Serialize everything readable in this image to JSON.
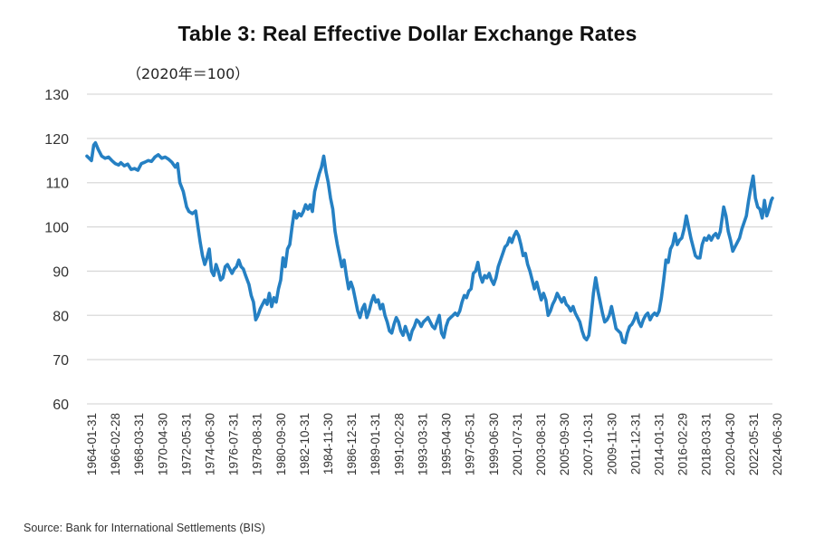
{
  "chart_data": {
    "type": "line",
    "title": "Table 3: Real Effective Dollar Exchange Rates",
    "unit_label": "（2020年＝100）",
    "xlabel": "",
    "ylabel": "",
    "ylim": [
      60,
      130
    ],
    "yticks": [
      60,
      70,
      80,
      90,
      100,
      110,
      120,
      130
    ],
    "grid": true,
    "legend": "none",
    "line_color": "#2580c3",
    "x_range": [
      1964.0,
      2024.5
    ],
    "xtick_labels": [
      "1964-01-31",
      "1966-02-28",
      "1968-03-31",
      "1970-04-30",
      "1972-05-31",
      "1974-06-30",
      "1976-07-31",
      "1978-08-31",
      "1980-09-30",
      "1982-10-31",
      "1984-11-30",
      "1986-12-31",
      "1989-01-31",
      "1991-02-28",
      "1993-03-31",
      "1995-04-30",
      "1997-05-31",
      "1999-06-30",
      "2001-07-31",
      "2003-08-31",
      "2005-09-30",
      "2007-10-31",
      "2009-11-30",
      "2011-12-31",
      "2014-01-31",
      "2016-02-29",
      "2018-03-31",
      "2020-04-30",
      "2022-05-31",
      "2024-06-30"
    ],
    "series": [
      {
        "name": "Real Effective Dollar Exchange Rate (2020=100)",
        "points": [
          [
            1964.0,
            116.0
          ],
          [
            1964.2,
            115.5
          ],
          [
            1964.4,
            115.0
          ],
          [
            1964.6,
            118.5
          ],
          [
            1964.75,
            119.0
          ],
          [
            1965.0,
            117.5
          ],
          [
            1965.3,
            116.0
          ],
          [
            1965.6,
            115.5
          ],
          [
            1965.9,
            115.8
          ],
          [
            1966.2,
            115.0
          ],
          [
            1966.5,
            114.3
          ],
          [
            1966.8,
            114.0
          ],
          [
            1967.0,
            114.5
          ],
          [
            1967.3,
            113.8
          ],
          [
            1967.6,
            114.2
          ],
          [
            1967.9,
            113.0
          ],
          [
            1968.2,
            113.2
          ],
          [
            1968.5,
            112.8
          ],
          [
            1968.8,
            114.3
          ],
          [
            1969.1,
            114.6
          ],
          [
            1969.4,
            115.0
          ],
          [
            1969.7,
            114.8
          ],
          [
            1970.0,
            115.8
          ],
          [
            1970.3,
            116.3
          ],
          [
            1970.6,
            115.5
          ],
          [
            1970.9,
            115.8
          ],
          [
            1971.2,
            115.3
          ],
          [
            1971.5,
            114.6
          ],
          [
            1971.8,
            113.5
          ],
          [
            1972.0,
            114.3
          ],
          [
            1972.2,
            110.0
          ],
          [
            1972.5,
            108.0
          ],
          [
            1972.8,
            104.5
          ],
          [
            1973.0,
            103.5
          ],
          [
            1973.3,
            103.0
          ],
          [
            1973.6,
            103.6
          ],
          [
            1973.8,
            100.0
          ],
          [
            1974.0,
            96.5
          ],
          [
            1974.2,
            93.5
          ],
          [
            1974.4,
            91.5
          ],
          [
            1974.6,
            93.0
          ],
          [
            1974.8,
            95.0
          ],
          [
            1975.0,
            90.0
          ],
          [
            1975.2,
            89.0
          ],
          [
            1975.4,
            91.5
          ],
          [
            1975.6,
            90.0
          ],
          [
            1975.8,
            88.0
          ],
          [
            1976.0,
            88.5
          ],
          [
            1976.2,
            91.0
          ],
          [
            1976.4,
            91.5
          ],
          [
            1976.6,
            90.5
          ],
          [
            1976.8,
            89.5
          ],
          [
            1977.0,
            90.5
          ],
          [
            1977.2,
            91.0
          ],
          [
            1977.4,
            92.5
          ],
          [
            1977.6,
            91.0
          ],
          [
            1977.8,
            90.5
          ],
          [
            1978.0,
            89.0
          ],
          [
            1978.3,
            87.0
          ],
          [
            1978.5,
            84.5
          ],
          [
            1978.7,
            83.0
          ],
          [
            1978.9,
            79.0
          ],
          [
            1979.1,
            80.0
          ],
          [
            1979.3,
            81.5
          ],
          [
            1979.5,
            82.5
          ],
          [
            1979.7,
            83.5
          ],
          [
            1979.9,
            82.5
          ],
          [
            1980.1,
            85.0
          ],
          [
            1980.3,
            82.0
          ],
          [
            1980.5,
            84.0
          ],
          [
            1980.7,
            83.0
          ],
          [
            1980.9,
            86.0
          ],
          [
            1981.1,
            88.0
          ],
          [
            1981.3,
            93.0
          ],
          [
            1981.5,
            91.0
          ],
          [
            1981.7,
            95.0
          ],
          [
            1981.9,
            96.0
          ],
          [
            1982.1,
            100.0
          ],
          [
            1982.3,
            103.5
          ],
          [
            1982.5,
            102.0
          ],
          [
            1982.7,
            103.0
          ],
          [
            1982.9,
            102.5
          ],
          [
            1983.1,
            103.5
          ],
          [
            1983.3,
            105.0
          ],
          [
            1983.5,
            104.0
          ],
          [
            1983.7,
            105.0
          ],
          [
            1983.9,
            103.5
          ],
          [
            1984.1,
            108.0
          ],
          [
            1984.3,
            110.0
          ],
          [
            1984.5,
            112.0
          ],
          [
            1984.7,
            113.5
          ],
          [
            1984.9,
            116.0
          ],
          [
            1985.1,
            112.5
          ],
          [
            1985.3,
            110.0
          ],
          [
            1985.5,
            106.5
          ],
          [
            1985.7,
            104.0
          ],
          [
            1985.9,
            99.0
          ],
          [
            1986.1,
            96.0
          ],
          [
            1986.3,
            93.5
          ],
          [
            1986.5,
            91.0
          ],
          [
            1986.7,
            92.5
          ],
          [
            1986.9,
            89.0
          ],
          [
            1987.1,
            86.0
          ],
          [
            1987.3,
            87.5
          ],
          [
            1987.5,
            86.0
          ],
          [
            1987.7,
            83.5
          ],
          [
            1987.9,
            81.0
          ],
          [
            1988.1,
            79.5
          ],
          [
            1988.3,
            81.5
          ],
          [
            1988.5,
            82.5
          ],
          [
            1988.7,
            79.5
          ],
          [
            1988.9,
            81.0
          ],
          [
            1989.1,
            83.0
          ],
          [
            1989.3,
            84.5
          ],
          [
            1989.5,
            83.0
          ],
          [
            1989.7,
            83.5
          ],
          [
            1989.9,
            81.5
          ],
          [
            1990.1,
            82.5
          ],
          [
            1990.3,
            80.0
          ],
          [
            1990.5,
            78.5
          ],
          [
            1990.7,
            76.5
          ],
          [
            1990.9,
            76.0
          ],
          [
            1991.1,
            78.0
          ],
          [
            1991.3,
            79.5
          ],
          [
            1991.5,
            78.5
          ],
          [
            1991.7,
            76.5
          ],
          [
            1991.9,
            75.5
          ],
          [
            1992.1,
            77.5
          ],
          [
            1992.3,
            76.0
          ],
          [
            1992.5,
            74.5
          ],
          [
            1992.7,
            76.5
          ],
          [
            1992.9,
            77.5
          ],
          [
            1993.1,
            79.0
          ],
          [
            1993.3,
            78.5
          ],
          [
            1993.5,
            77.5
          ],
          [
            1993.7,
            78.5
          ],
          [
            1993.9,
            79.0
          ],
          [
            1994.1,
            79.5
          ],
          [
            1994.3,
            78.5
          ],
          [
            1994.5,
            77.5
          ],
          [
            1994.7,
            77.0
          ],
          [
            1994.9,
            78.5
          ],
          [
            1995.1,
            80.0
          ],
          [
            1995.3,
            76.0
          ],
          [
            1995.5,
            75.0
          ],
          [
            1995.7,
            77.5
          ],
          [
            1995.9,
            79.0
          ],
          [
            1996.1,
            79.5
          ],
          [
            1996.3,
            80.0
          ],
          [
            1996.5,
            80.5
          ],
          [
            1996.7,
            80.0
          ],
          [
            1996.9,
            81.0
          ],
          [
            1997.1,
            83.0
          ],
          [
            1997.3,
            84.5
          ],
          [
            1997.5,
            84.0
          ],
          [
            1997.7,
            85.5
          ],
          [
            1997.9,
            86.0
          ],
          [
            1998.1,
            89.5
          ],
          [
            1998.3,
            90.0
          ],
          [
            1998.5,
            92.0
          ],
          [
            1998.7,
            89.0
          ],
          [
            1998.9,
            87.5
          ],
          [
            1999.1,
            89.0
          ],
          [
            1999.3,
            88.5
          ],
          [
            1999.5,
            89.5
          ],
          [
            1999.7,
            88.0
          ],
          [
            1999.9,
            87.0
          ],
          [
            2000.1,
            88.5
          ],
          [
            2000.3,
            91.0
          ],
          [
            2000.5,
            92.5
          ],
          [
            2000.7,
            94.0
          ],
          [
            2000.9,
            95.5
          ],
          [
            2001.1,
            96.0
          ],
          [
            2001.3,
            97.5
          ],
          [
            2001.5,
            96.5
          ],
          [
            2001.7,
            98.0
          ],
          [
            2001.9,
            99.0
          ],
          [
            2002.1,
            98.0
          ],
          [
            2002.3,
            96.0
          ],
          [
            2002.5,
            93.5
          ],
          [
            2002.7,
            94.0
          ],
          [
            2002.9,
            91.5
          ],
          [
            2003.1,
            90.0
          ],
          [
            2003.3,
            88.0
          ],
          [
            2003.5,
            86.0
          ],
          [
            2003.7,
            87.5
          ],
          [
            2003.9,
            85.5
          ],
          [
            2004.1,
            83.5
          ],
          [
            2004.3,
            85.0
          ],
          [
            2004.5,
            83.5
          ],
          [
            2004.7,
            80.0
          ],
          [
            2004.9,
            81.0
          ],
          [
            2005.1,
            82.5
          ],
          [
            2005.3,
            83.5
          ],
          [
            2005.5,
            85.0
          ],
          [
            2005.7,
            84.0
          ],
          [
            2005.9,
            83.0
          ],
          [
            2006.1,
            84.0
          ],
          [
            2006.3,
            82.5
          ],
          [
            2006.5,
            82.0
          ],
          [
            2006.7,
            81.0
          ],
          [
            2006.9,
            82.0
          ],
          [
            2007.1,
            80.5
          ],
          [
            2007.3,
            79.5
          ],
          [
            2007.5,
            78.5
          ],
          [
            2007.7,
            76.5
          ],
          [
            2007.9,
            75.0
          ],
          [
            2008.1,
            74.5
          ],
          [
            2008.3,
            75.5
          ],
          [
            2008.5,
            80.0
          ],
          [
            2008.7,
            85.0
          ],
          [
            2008.9,
            88.5
          ],
          [
            2009.1,
            85.5
          ],
          [
            2009.3,
            83.0
          ],
          [
            2009.5,
            80.5
          ],
          [
            2009.7,
            78.5
          ],
          [
            2009.9,
            79.0
          ],
          [
            2010.1,
            80.0
          ],
          [
            2010.3,
            82.0
          ],
          [
            2010.5,
            79.5
          ],
          [
            2010.7,
            77.0
          ],
          [
            2010.9,
            76.5
          ],
          [
            2011.1,
            76.0
          ],
          [
            2011.3,
            74.0
          ],
          [
            2011.5,
            73.8
          ],
          [
            2011.7,
            76.0
          ],
          [
            2011.9,
            77.5
          ],
          [
            2012.1,
            78.0
          ],
          [
            2012.3,
            79.0
          ],
          [
            2012.5,
            80.5
          ],
          [
            2012.7,
            78.5
          ],
          [
            2012.9,
            77.5
          ],
          [
            2013.1,
            79.0
          ],
          [
            2013.3,
            80.0
          ],
          [
            2013.5,
            80.5
          ],
          [
            2013.7,
            79.0
          ],
          [
            2013.9,
            80.0
          ],
          [
            2014.1,
            80.5
          ],
          [
            2014.3,
            80.0
          ],
          [
            2014.5,
            81.0
          ],
          [
            2014.7,
            84.0
          ],
          [
            2014.9,
            88.0
          ],
          [
            2015.1,
            92.5
          ],
          [
            2015.3,
            92.0
          ],
          [
            2015.5,
            95.0
          ],
          [
            2015.7,
            96.0
          ],
          [
            2015.9,
            98.5
          ],
          [
            2016.1,
            96.0
          ],
          [
            2016.3,
            97.0
          ],
          [
            2016.5,
            97.5
          ],
          [
            2016.7,
            99.5
          ],
          [
            2016.9,
            102.5
          ],
          [
            2017.1,
            100.0
          ],
          [
            2017.3,
            97.5
          ],
          [
            2017.5,
            95.5
          ],
          [
            2017.7,
            93.5
          ],
          [
            2017.9,
            93.0
          ],
          [
            2018.1,
            93.0
          ],
          [
            2018.3,
            96.0
          ],
          [
            2018.5,
            97.5
          ],
          [
            2018.7,
            97.0
          ],
          [
            2018.9,
            98.0
          ],
          [
            2019.1,
            97.0
          ],
          [
            2019.3,
            98.0
          ],
          [
            2019.5,
            98.5
          ],
          [
            2019.7,
            97.5
          ],
          [
            2019.9,
            99.0
          ],
          [
            2020.2,
            104.5
          ],
          [
            2020.4,
            102.5
          ],
          [
            2020.6,
            99.0
          ],
          [
            2020.8,
            97.0
          ],
          [
            2021.0,
            94.5
          ],
          [
            2021.2,
            95.5
          ],
          [
            2021.4,
            96.5
          ],
          [
            2021.6,
            97.5
          ],
          [
            2021.8,
            99.5
          ],
          [
            2022.0,
            101.0
          ],
          [
            2022.2,
            102.5
          ],
          [
            2022.4,
            106.0
          ],
          [
            2022.6,
            109.0
          ],
          [
            2022.8,
            111.5
          ],
          [
            2023.0,
            106.5
          ],
          [
            2023.2,
            104.5
          ],
          [
            2023.4,
            104.0
          ],
          [
            2023.6,
            102.0
          ],
          [
            2023.8,
            106.0
          ],
          [
            2024.0,
            102.5
          ],
          [
            2024.2,
            104.0
          ],
          [
            2024.4,
            106.0
          ],
          [
            2024.5,
            106.5
          ]
        ]
      }
    ]
  },
  "source": "Source: Bank for International Settlements (BIS)"
}
